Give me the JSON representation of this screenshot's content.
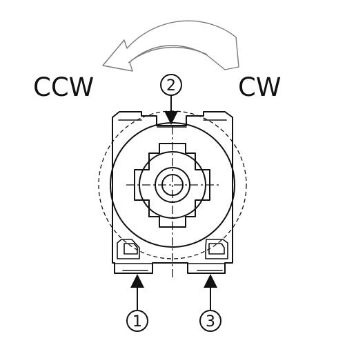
{
  "labels": {
    "ccw": "CCW",
    "cw": "CW"
  },
  "pins": [
    {
      "number": "1"
    },
    {
      "number": "2"
    },
    {
      "number": "3"
    }
  ]
}
